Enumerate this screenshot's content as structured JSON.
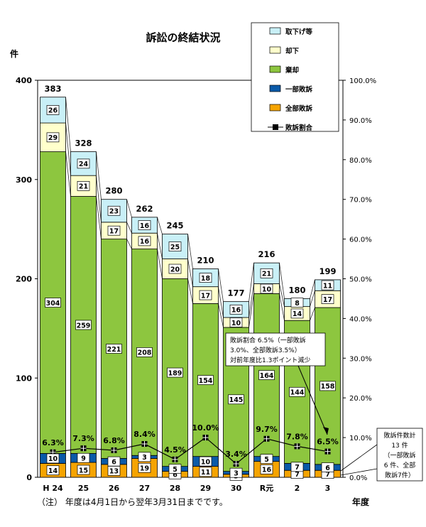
{
  "chart_data": {
    "type": "bar",
    "title": "訴訟の終結状況",
    "y_unit": "件",
    "x_unit": "年度",
    "categories": [
      "H 24",
      "25",
      "26",
      "27",
      "28",
      "29",
      "30",
      "R元",
      "2",
      "3"
    ],
    "ylim": [
      0,
      400
    ],
    "y2lim": [
      0,
      100
    ],
    "y_ticks": [
      "0",
      "100",
      "200",
      "300",
      "400"
    ],
    "y2_ticks": [
      "0.0%",
      "10.0%",
      "20.0%",
      "30.0%",
      "40.0%",
      "50.0%",
      "60.0%",
      "70.0%",
      "80.0%",
      "90.0%",
      "100.0%"
    ],
    "totals": [
      383,
      328,
      280,
      262,
      245,
      210,
      177,
      216,
      180,
      199
    ],
    "series": [
      {
        "name": "全部敗訴",
        "color": "#f5a400",
        "values": [
          14,
          15,
          13,
          19,
          6,
          11,
          3,
          16,
          7,
          7
        ]
      },
      {
        "name": "一部敗訴",
        "color": "#0a5aa8",
        "values": [
          10,
          9,
          6,
          3,
          5,
          10,
          3,
          5,
          7,
          6
        ]
      },
      {
        "name": "棄却",
        "color": "#8dc63f",
        "values": [
          304,
          259,
          221,
          208,
          189,
          154,
          145,
          164,
          144,
          158
        ]
      },
      {
        "name": "却下",
        "color": "#ffffcc",
        "values": [
          29,
          21,
          17,
          16,
          20,
          17,
          10,
          10,
          14,
          17
        ]
      },
      {
        "name": "取下げ等",
        "color": "#c9f0f7",
        "values": [
          26,
          24,
          23,
          16,
          25,
          18,
          16,
          21,
          8,
          11
        ]
      }
    ],
    "line": {
      "name": "敗訴割合",
      "values": [
        6.3,
        7.3,
        6.8,
        8.4,
        4.5,
        10.0,
        3.4,
        9.7,
        7.8,
        6.5
      ],
      "labels": [
        "6.3%",
        "7.3%",
        "6.8%",
        "8.4%",
        "4.5%",
        "10.0%",
        "3.4%",
        "9.7%",
        "7.8%",
        "6.5%"
      ]
    },
    "legend_order": [
      "取下げ等",
      "却下",
      "棄却",
      "一部敗訴",
      "全部敗訴",
      "敗訴割合"
    ],
    "annotations": {
      "ratio_note": [
        "敗訴割合 6.5%（一部敗訴",
        "3.0%、全部敗訴3.5%）",
        "対前年度比1.3ポイント減少"
      ],
      "count_note": [
        "敗訴件数計",
        "13 件",
        "（一部敗訴",
        "6 件、全部",
        "敗訴7件）"
      ]
    },
    "footnote": "（注） 年度は4月1日から翌年3月31日までです。"
  }
}
